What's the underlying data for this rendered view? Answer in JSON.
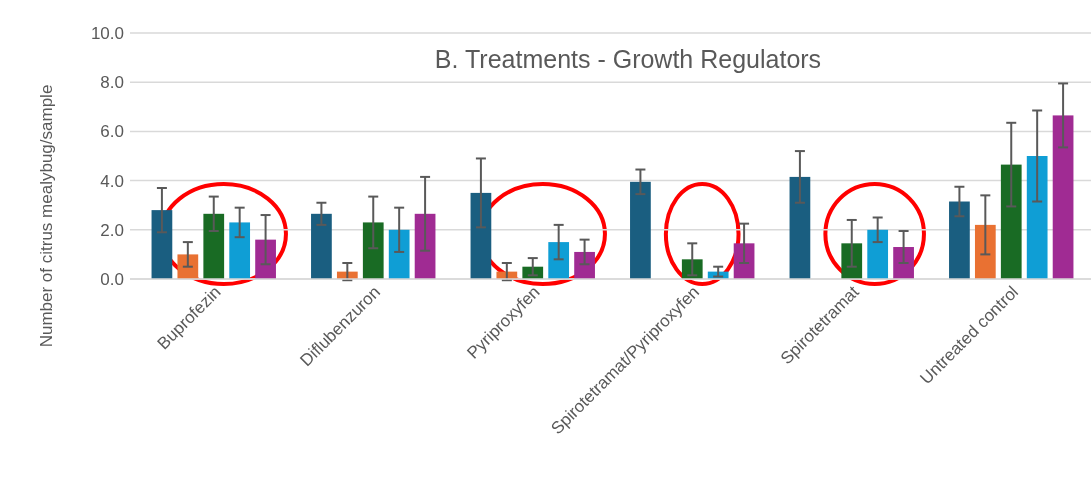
{
  "chart_data": {
    "type": "bar",
    "title": "B. Treatments - Growth Regulators",
    "ylabel": "Number of citrus mealybug/sample",
    "categories": [
      "Buprofezin",
      "Diflubenzuron",
      "Pyriproxyfen",
      "Spirotetramat/Pyriproxyfen",
      "Spirotetramat",
      "Untreated control"
    ],
    "series": [
      {
        "color": "#1a5e80",
        "values": [
          2.8,
          2.65,
          3.5,
          3.95,
          4.15,
          3.15
        ],
        "errors": [
          0.9,
          0.45,
          1.4,
          0.5,
          1.05,
          0.6
        ]
      },
      {
        "color": "#e97132",
        "values": [
          1.0,
          0.3,
          0.3,
          null,
          null,
          2.2
        ],
        "errors": [
          0.5,
          0.35,
          0.35,
          null,
          null,
          1.2
        ]
      },
      {
        "color": "#196b24",
        "values": [
          2.65,
          2.3,
          0.5,
          0.8,
          1.45,
          4.65
        ],
        "errors": [
          0.7,
          1.05,
          0.35,
          0.65,
          0.95,
          1.7
        ]
      },
      {
        "color": "#0f9ed5",
        "values": [
          2.3,
          2.0,
          1.5,
          0.3,
          2.0,
          5.0
        ],
        "errors": [
          0.6,
          0.9,
          0.7,
          0.2,
          0.5,
          1.85
        ]
      },
      {
        "color": "#a02b93",
        "values": [
          1.6,
          2.65,
          1.1,
          1.45,
          1.3,
          6.65
        ],
        "errors": [
          1.0,
          1.5,
          0.5,
          0.8,
          0.65,
          1.3
        ]
      }
    ],
    "ylim": [
      0,
      10
    ],
    "yticks": [
      {
        "value": 0,
        "label": "0.0"
      },
      {
        "value": 2,
        "label": "2.0"
      },
      {
        "value": 4,
        "label": "4.0"
      },
      {
        "value": 6,
        "label": "6.0"
      },
      {
        "value": 8,
        "label": "8.0"
      },
      {
        "value": 10,
        "label": "10.0"
      }
    ],
    "grid": "y"
  }
}
